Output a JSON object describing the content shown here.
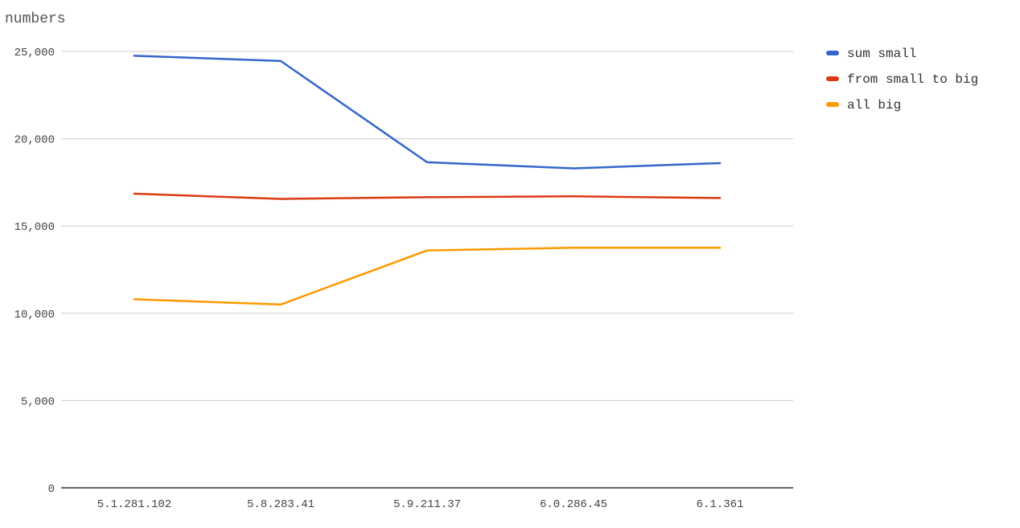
{
  "chart_data": {
    "type": "line",
    "title": "",
    "xlabel": "",
    "ylabel": "numbers",
    "categories": [
      "5.1.281.102",
      "5.8.283.41",
      "5.9.211.37",
      "6.0.286.45",
      "6.1.361"
    ],
    "ylim": [
      0,
      25000
    ],
    "yticks": [
      0,
      5000,
      10000,
      15000,
      20000,
      25000
    ],
    "ytick_labels": [
      "0",
      "5,000",
      "10,000",
      "15,000",
      "20,000",
      "25,000"
    ],
    "grid": true,
    "legend_position": "right",
    "series": [
      {
        "name": "sum small",
        "color": "#3366cc",
        "values": [
          24750,
          24450,
          18650,
          18300,
          18600
        ]
      },
      {
        "name": "from small to big",
        "color": "#dc3912",
        "values": [
          16850,
          16550,
          16650,
          16700,
          16600
        ]
      },
      {
        "name": "all big",
        "color": "#ff9900",
        "values": [
          10800,
          10500,
          13600,
          13750,
          13750
        ]
      }
    ]
  }
}
